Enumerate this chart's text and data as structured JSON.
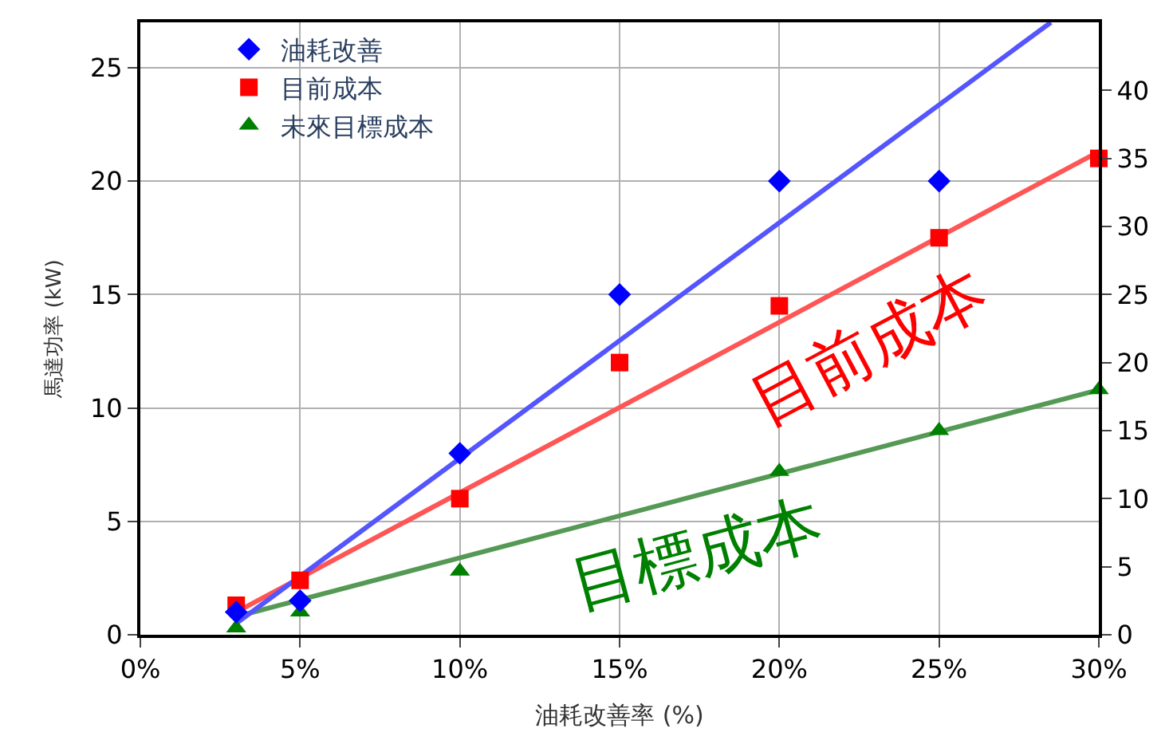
{
  "chart_data": {
    "type": "scatter",
    "xlabel": "油耗改善率 (%)",
    "ylabel": "馬達功率 (kW)",
    "x": [
      3,
      5,
      10,
      15,
      20,
      25,
      30
    ],
    "series": [
      {
        "name": "油耗改善",
        "color": "#0000ff",
        "marker": "diamond",
        "values": [
          1.0,
          1.5,
          8.0,
          15.0,
          20.0,
          20.0,
          null
        ]
      },
      {
        "name": "目前成本",
        "color": "#ff0000",
        "marker": "square",
        "values": [
          1.3,
          2.4,
          6.0,
          12.0,
          14.5,
          17.5,
          21.0
        ]
      },
      {
        "name": "未來目標成本",
        "color": "#008000",
        "marker": "triangle",
        "values": [
          0.3,
          1.0,
          2.8,
          null,
          7.2,
          9.0,
          10.8
        ]
      },
      {
        "type": "line",
        "color": "#5555ff",
        "x": [
          3,
          28.5
        ],
        "values": [
          0.5,
          27.0
        ]
      },
      {
        "type": "line",
        "color": "#ff5555",
        "x": [
          3,
          30
        ],
        "values": [
          1.0,
          21.3
        ]
      },
      {
        "type": "line",
        "color": "#559955",
        "x": [
          3,
          30
        ],
        "values": [
          0.8,
          10.8
        ]
      }
    ],
    "annotations": [
      "目前成本",
      "目標成本"
    ],
    "xlim": [
      0,
      30
    ],
    "xticks": [
      {
        "value": 0,
        "label": "0%"
      },
      {
        "value": 5,
        "label": "5%"
      },
      {
        "value": 10,
        "label": "10%"
      },
      {
        "value": 15,
        "label": "15%"
      },
      {
        "value": 20,
        "label": "20%"
      },
      {
        "value": 25,
        "label": "25%"
      },
      {
        "value": 30,
        "label": "30%"
      }
    ],
    "ylim": [
      0,
      27
    ],
    "yticks": [
      0,
      5,
      10,
      15,
      20,
      25
    ],
    "y2lim": [
      0,
      45
    ],
    "y2ticks": [
      0,
      5,
      10,
      15,
      20,
      25,
      30,
      35,
      40
    ],
    "grid": true,
    "legend": "top left"
  }
}
